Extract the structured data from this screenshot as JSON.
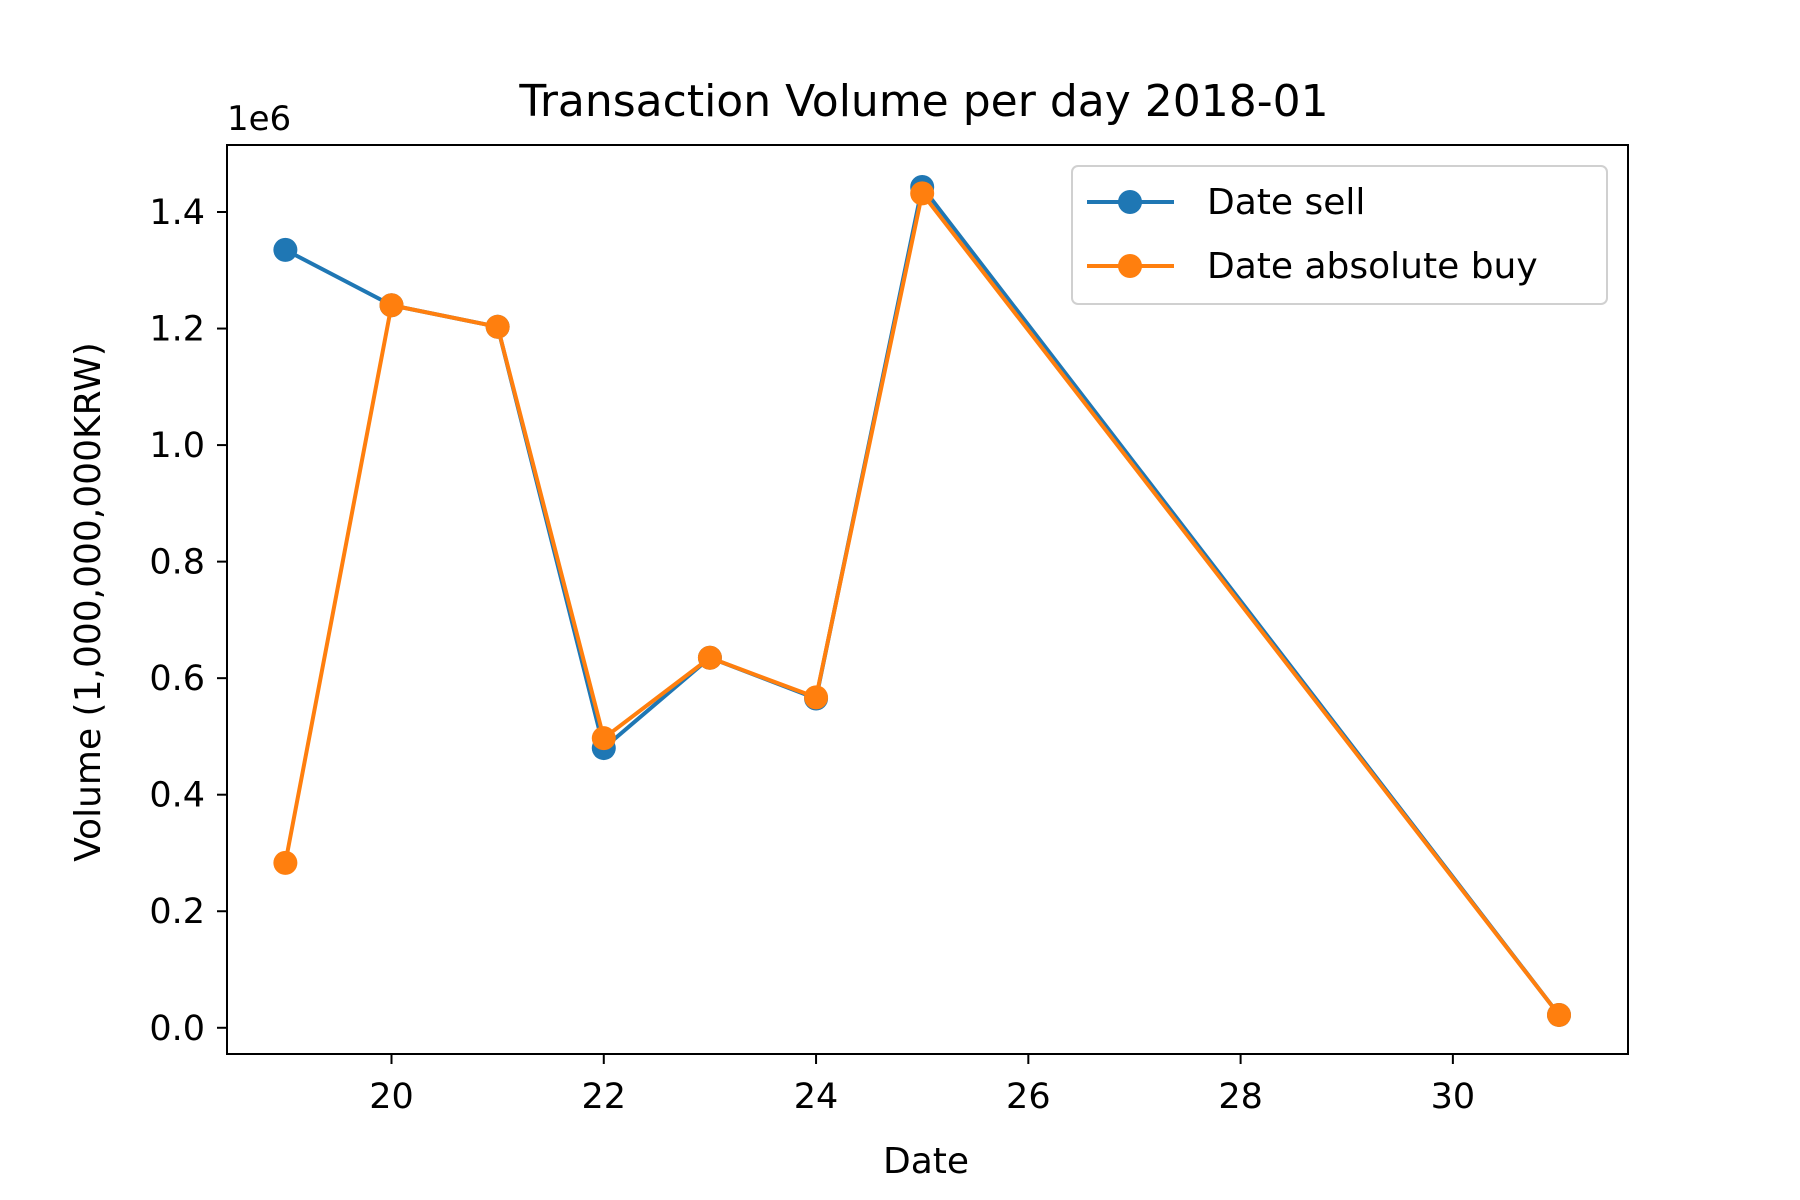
{
  "chart_data": {
    "type": "line",
    "title": "Transaction Volume per day 2018-01",
    "xlabel": "Date",
    "ylabel": "Volume (1,000,000,000KRW)",
    "y_offset_text": "1e6",
    "x_ticks": [
      20,
      22,
      24,
      26,
      28,
      30
    ],
    "y_ticks": [
      0.0,
      0.2,
      0.4,
      0.6,
      0.8,
      1.0,
      1.2,
      1.4
    ],
    "y_tick_labels": [
      "0.0",
      "0.2",
      "0.4",
      "0.6",
      "0.8",
      "1.0",
      "1.2",
      "1.4"
    ],
    "xlim": [
      18.45,
      31.65
    ],
    "ylim": [
      -0.045,
      1.515
    ],
    "grid": false,
    "legend_position": "top-right",
    "series": [
      {
        "name": "Date sell",
        "color": "#1f77b4",
        "x": [
          19,
          20,
          21,
          22,
          23,
          24,
          25,
          31
        ],
        "y": [
          1.335,
          1.24,
          1.203,
          0.48,
          0.635,
          0.565,
          1.443,
          0.022
        ]
      },
      {
        "name": "Date absolute buy",
        "color": "#ff7f0e",
        "x": [
          19,
          20,
          21,
          22,
          23,
          24,
          25,
          31
        ],
        "y": [
          0.283,
          1.24,
          1.203,
          0.497,
          0.635,
          0.567,
          1.432,
          0.022
        ]
      }
    ]
  }
}
